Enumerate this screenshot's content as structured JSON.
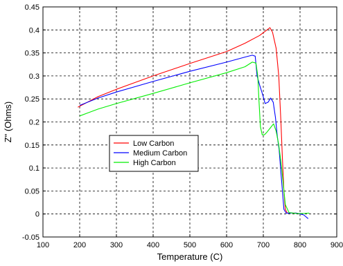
{
  "chart_data": {
    "type": "line",
    "title": "",
    "xlabel": "Temperature (C)",
    "ylabel": "Z\" (Ohms)",
    "xlim": [
      100,
      900
    ],
    "ylim": [
      -0.05,
      0.45
    ],
    "grid": true,
    "legend_position": "center-left",
    "x_ticks": [
      100,
      200,
      300,
      400,
      500,
      600,
      700,
      800,
      900
    ],
    "x_tick_labels": [
      "100",
      "200",
      "300",
      "400",
      "500",
      "600",
      "700",
      "800",
      "900"
    ],
    "y_ticks": [
      -0.05,
      0,
      0.05,
      0.1,
      0.15,
      0.2,
      0.25,
      0.3,
      0.35,
      0.4,
      0.45
    ],
    "y_tick_labels": [
      "-0.05",
      "0",
      "0.05",
      "0.1",
      "0.15",
      "0.2",
      "0.25",
      "0.3",
      "0.35",
      "0.4",
      "0.45"
    ],
    "series": [
      {
        "name": "Low Carbon",
        "color": "#ff0000",
        "x": [
          195,
          250,
          300,
          400,
          500,
          600,
          650,
          690,
          710,
          718,
          725,
          735,
          742,
          748,
          752,
          756,
          760,
          765,
          790
        ],
        "y": [
          0.232,
          0.255,
          0.271,
          0.3,
          0.327,
          0.353,
          0.371,
          0.388,
          0.4,
          0.405,
          0.395,
          0.36,
          0.3,
          0.2,
          0.12,
          0.05,
          0.01,
          0.002,
          0.002
        ]
      },
      {
        "name": "Medium Carbon",
        "color": "#0000ff",
        "x": [
          200,
          250,
          300,
          400,
          500,
          600,
          650,
          670,
          678,
          683,
          690,
          698,
          705,
          713,
          720,
          727,
          733,
          738,
          743,
          748,
          752,
          756,
          762,
          770,
          790,
          810,
          822
        ],
        "y": [
          0.236,
          0.252,
          0.265,
          0.288,
          0.31,
          0.33,
          0.341,
          0.345,
          0.343,
          0.3,
          0.28,
          0.26,
          0.24,
          0.243,
          0.252,
          0.243,
          0.21,
          0.17,
          0.14,
          0.09,
          0.05,
          0.01,
          0.002,
          0.002,
          0.002,
          -0.002,
          -0.01
        ]
      },
      {
        "name": "High Carbon",
        "color": "#00ee00",
        "x": [
          200,
          250,
          300,
          400,
          500,
          600,
          650,
          670,
          680,
          685,
          688,
          692,
          697,
          703,
          710,
          720,
          728,
          735,
          742,
          750,
          755,
          760,
          770,
          790,
          810,
          825
        ],
        "y": [
          0.213,
          0.228,
          0.24,
          0.262,
          0.285,
          0.307,
          0.32,
          0.33,
          0.328,
          0.3,
          0.25,
          0.19,
          0.172,
          0.172,
          0.178,
          0.188,
          0.196,
          0.18,
          0.15,
          0.1,
          0.06,
          0.02,
          0.003,
          0.001,
          0.001,
          0.002
        ]
      }
    ]
  }
}
